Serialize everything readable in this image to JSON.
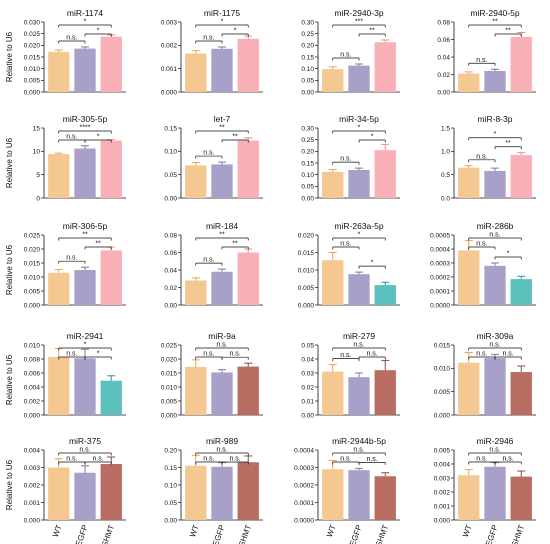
{
  "figure": {
    "ylabel": "Relative to U6",
    "groups": [
      "WT",
      "dsEGFP",
      "dsSHMT"
    ],
    "colors": {
      "WT": "#F5C891",
      "dsEGFP": "#A8A0C8",
      "dsSHMT_up": "#F9AFB6",
      "dsSHMT_down_teal": "#5CC1BD",
      "dsSHMT_mixed": "#B86C62",
      "error_WT": "#E6A457",
      "error_dsEGFP": "#7E73A8",
      "error_up": "#E98992",
      "error_teal": "#31948F",
      "error_mixed": "#8C4A42"
    }
  },
  "chart_data": [
    {
      "type": "bar",
      "title": "miR-1174",
      "categories": [
        "WT",
        "dsEGFP",
        "dsSHMT"
      ],
      "values": [
        0.0172,
        0.0186,
        0.0237
      ],
      "errors": [
        0.0008,
        0.0007,
        0.0008
      ],
      "ylim": [
        0,
        0.03
      ],
      "yticks": [
        "0.000",
        "0.005",
        "0.010",
        "0.015",
        "0.020",
        "0.025",
        "0.030"
      ],
      "tick_values": [
        0,
        0.005,
        0.01,
        0.015,
        0.02,
        0.025,
        0.03
      ],
      "sig": [
        {
          "a": 0,
          "b": 1,
          "label": "n.s."
        },
        {
          "a": 1,
          "b": 2,
          "label": "*"
        },
        {
          "a": 0,
          "b": 2,
          "label": "*"
        }
      ],
      "color3": "dsSHMT_up"
    },
    {
      "type": "bar",
      "title": "miR-1175",
      "categories": [
        "WT",
        "dsEGFP",
        "dsSHMT"
      ],
      "values": [
        0.00165,
        0.00185,
        0.00228
      ],
      "errors": [
        0.00012,
        8e-05,
        0.00012
      ],
      "ylim": [
        0,
        0.003
      ],
      "yticks": [
        "0.000",
        "0.001",
        "0.002",
        "0.003"
      ],
      "tick_values": [
        0,
        0.001,
        0.002,
        0.003
      ],
      "sig": [
        {
          "a": 0,
          "b": 1,
          "label": "n.s."
        },
        {
          "a": 1,
          "b": 2,
          "label": "*"
        },
        {
          "a": 0,
          "b": 2,
          "label": "*"
        }
      ],
      "color3": "dsSHMT_up"
    },
    {
      "type": "bar",
      "title": "miR-2940-3p",
      "categories": [
        "WT",
        "dsEGFP",
        "dsSHMT"
      ],
      "values": [
        0.098,
        0.113,
        0.213
      ],
      "errors": [
        0.01,
        0.007,
        0.01
      ],
      "ylim": [
        0,
        0.3
      ],
      "yticks": [
        "0.00",
        "0.05",
        "0.10",
        "0.15",
        "0.20",
        "0.25",
        "0.30"
      ],
      "tick_values": [
        0,
        0.05,
        0.1,
        0.15,
        0.2,
        0.25,
        0.3
      ],
      "sig": [
        {
          "a": 0,
          "b": 1,
          "label": "n.s."
        },
        {
          "a": 1,
          "b": 2,
          "label": "**"
        },
        {
          "a": 0,
          "b": 2,
          "label": "***"
        }
      ],
      "color3": "dsSHMT_up"
    },
    {
      "type": "bar",
      "title": "miR-2940-5p",
      "categories": [
        "WT",
        "dsEGFP",
        "dsSHMT"
      ],
      "values": [
        0.021,
        0.024,
        0.063
      ],
      "errors": [
        0.002,
        0.002,
        0.005
      ],
      "ylim": [
        0,
        0.08
      ],
      "yticks": [
        "0.00",
        "0.02",
        "0.04",
        "0.06",
        "0.08"
      ],
      "tick_values": [
        0,
        0.02,
        0.04,
        0.06,
        0.08
      ],
      "sig": [
        {
          "a": 0,
          "b": 1,
          "label": "n.s."
        },
        {
          "a": 1,
          "b": 2,
          "label": "**"
        },
        {
          "a": 0,
          "b": 2,
          "label": "**"
        }
      ],
      "color3": "dsSHMT_up"
    },
    {
      "type": "bar",
      "title": "miR-305-5p",
      "categories": [
        "WT",
        "dsEGFP",
        "dsSHMT"
      ],
      "values": [
        9.4,
        10.6,
        12.3
      ],
      "errors": [
        0.2,
        0.6,
        0.2
      ],
      "ylim": [
        0,
        15
      ],
      "yticks": [
        "0",
        "5",
        "10",
        "15"
      ],
      "tick_values": [
        0,
        5,
        10,
        15
      ],
      "sig": [
        {
          "a": 0,
          "b": 1,
          "label": "n.s."
        },
        {
          "a": 1,
          "b": 2,
          "label": "*"
        },
        {
          "a": 0,
          "b": 2,
          "label": "****"
        }
      ],
      "color3": "dsSHMT_up"
    },
    {
      "type": "bar",
      "title": "let-7",
      "categories": [
        "WT",
        "dsEGFP",
        "dsSHMT"
      ],
      "values": [
        0.07,
        0.072,
        0.123
      ],
      "errors": [
        0.006,
        0.005,
        0.006
      ],
      "ylim": [
        0,
        0.15
      ],
      "yticks": [
        "0.00",
        "0.05",
        "0.10",
        "0.15"
      ],
      "tick_values": [
        0,
        0.05,
        0.1,
        0.15
      ],
      "sig": [
        {
          "a": 0,
          "b": 1,
          "label": "n.s."
        },
        {
          "a": 1,
          "b": 2,
          "label": "**"
        },
        {
          "a": 0,
          "b": 2,
          "label": "**"
        }
      ],
      "color3": "dsSHMT_up"
    },
    {
      "type": "bar",
      "title": "miR-34-5p",
      "categories": [
        "WT",
        "dsEGFP",
        "dsSHMT"
      ],
      "values": [
        0.112,
        0.12,
        0.205
      ],
      "errors": [
        0.01,
        0.008,
        0.025
      ],
      "ylim": [
        0,
        0.3
      ],
      "yticks": [
        "0.00",
        "0.05",
        "0.10",
        "0.15",
        "0.20",
        "0.25",
        "0.30"
      ],
      "tick_values": [
        0,
        0.05,
        0.1,
        0.15,
        0.2,
        0.25,
        0.3
      ],
      "sig": [
        {
          "a": 0,
          "b": 1,
          "label": "n.s."
        },
        {
          "a": 1,
          "b": 2,
          "label": "*"
        },
        {
          "a": 0,
          "b": 2,
          "label": "*"
        }
      ],
      "color3": "dsSHMT_up"
    },
    {
      "type": "bar",
      "title": "miR-8-3p",
      "categories": [
        "WT",
        "dsEGFP",
        "dsSHMT"
      ],
      "values": [
        0.65,
        0.58,
        0.92
      ],
      "errors": [
        0.04,
        0.06,
        0.05
      ],
      "ylim": [
        0,
        1.5
      ],
      "yticks": [
        "0.0",
        "0.5",
        "1.0",
        "1.5"
      ],
      "tick_values": [
        0,
        0.5,
        1.0,
        1.5
      ],
      "sig": [
        {
          "a": 0,
          "b": 1,
          "label": "n.s."
        },
        {
          "a": 1,
          "b": 2,
          "label": "**"
        },
        {
          "a": 0,
          "b": 2,
          "label": "*"
        }
      ],
      "color3": "dsSHMT_up"
    },
    {
      "type": "bar",
      "title": "miR-306-5p",
      "categories": [
        "WT",
        "dsEGFP",
        "dsSHMT"
      ],
      "values": [
        0.0115,
        0.0125,
        0.0195
      ],
      "errors": [
        0.0012,
        0.001,
        0.0012
      ],
      "ylim": [
        0,
        0.025
      ],
      "yticks": [
        "0.000",
        "0.005",
        "0.010",
        "0.015",
        "0.020",
        "0.025"
      ],
      "tick_values": [
        0,
        0.005,
        0.01,
        0.015,
        0.02,
        0.025
      ],
      "sig": [
        {
          "a": 0,
          "b": 1,
          "label": "n.s."
        },
        {
          "a": 1,
          "b": 2,
          "label": "**"
        },
        {
          "a": 0,
          "b": 2,
          "label": "**"
        }
      ],
      "color3": "dsSHMT_up"
    },
    {
      "type": "bar",
      "title": "miR-184",
      "categories": [
        "WT",
        "dsEGFP",
        "dsSHMT"
      ],
      "values": [
        0.028,
        0.038,
        0.06
      ],
      "errors": [
        0.003,
        0.003,
        0.004
      ],
      "ylim": [
        0,
        0.08
      ],
      "yticks": [
        "0.00",
        "0.02",
        "0.04",
        "0.06",
        "0.08"
      ],
      "tick_values": [
        0,
        0.02,
        0.04,
        0.06,
        0.08
      ],
      "sig": [
        {
          "a": 0,
          "b": 1,
          "label": "n.s."
        },
        {
          "a": 1,
          "b": 2,
          "label": "**"
        },
        {
          "a": 0,
          "b": 2,
          "label": "**"
        }
      ],
      "color3": "dsSHMT_up"
    },
    {
      "type": "bar",
      "title": "miR-263a-5p",
      "categories": [
        "WT",
        "dsEGFP",
        "dsSHMT"
      ],
      "values": [
        0.0128,
        0.0088,
        0.0057
      ],
      "errors": [
        0.0022,
        0.0006,
        0.0008
      ],
      "ylim": [
        0,
        0.02
      ],
      "yticks": [
        "0.000",
        "0.005",
        "0.010",
        "0.015",
        "0.020"
      ],
      "tick_values": [
        0,
        0.005,
        0.01,
        0.015,
        0.02
      ],
      "sig": [
        {
          "a": 0,
          "b": 1,
          "label": "n.s."
        },
        {
          "a": 1,
          "b": 2,
          "label": "*"
        },
        {
          "a": 0,
          "b": 2,
          "label": "*"
        }
      ],
      "color3": "dsSHMT_down_teal"
    },
    {
      "type": "bar",
      "title": "miR-286b",
      "categories": [
        "WT",
        "dsEGFP",
        "dsSHMT"
      ],
      "values": [
        0.00039,
        0.00028,
        0.000185
      ],
      "errors": [
        7e-05,
        2e-05,
        2e-05
      ],
      "ylim": [
        0,
        0.0005
      ],
      "yticks": [
        "0.0000",
        "0.0001",
        "0.0002",
        "0.0003",
        "0.0004",
        "0.0005"
      ],
      "tick_values": [
        0,
        0.0001,
        0.0002,
        0.0003,
        0.0004,
        0.0005
      ],
      "sig": [
        {
          "a": 0,
          "b": 1,
          "label": "n.s."
        },
        {
          "a": 1,
          "b": 2,
          "label": "*"
        },
        {
          "a": 0,
          "b": 2,
          "label": "n.s."
        }
      ],
      "color3": "dsSHMT_down_teal"
    },
    {
      "type": "bar",
      "title": "miR-2941",
      "categories": [
        "WT",
        "dsEGFP",
        "dsSHMT"
      ],
      "values": [
        0.0083,
        0.0081,
        0.0049
      ],
      "errors": [
        0.0012,
        0.0013,
        0.0007
      ],
      "ylim": [
        0,
        0.01
      ],
      "yticks": [
        "0.000",
        "0.002",
        "0.004",
        "0.006",
        "0.008",
        "0.010"
      ],
      "tick_values": [
        0,
        0.002,
        0.004,
        0.006,
        0.008,
        0.01
      ],
      "sig": [
        {
          "a": 0,
          "b": 1,
          "label": "n.s."
        },
        {
          "a": 1,
          "b": 2,
          "label": "*"
        },
        {
          "a": 0,
          "b": 2,
          "label": "*"
        }
      ],
      "color3": "dsSHMT_down_teal"
    },
    {
      "type": "bar",
      "title": "miR-9a",
      "categories": [
        "WT",
        "dsEGFP",
        "dsSHMT"
      ],
      "values": [
        0.0172,
        0.0152,
        0.0173
      ],
      "errors": [
        0.0025,
        0.001,
        0.0012
      ],
      "ylim": [
        0,
        0.025
      ],
      "yticks": [
        "0.000",
        "0.005",
        "0.010",
        "0.015",
        "0.020",
        "0.025"
      ],
      "tick_values": [
        0,
        0.005,
        0.01,
        0.015,
        0.02,
        0.025
      ],
      "sig": [
        {
          "a": 0,
          "b": 1,
          "label": "n.s."
        },
        {
          "a": 1,
          "b": 2,
          "label": "n.s."
        },
        {
          "a": 0,
          "b": 2,
          "label": "n.s."
        }
      ],
      "color3": "dsSHMT_mixed"
    },
    {
      "type": "bar",
      "title": "miR-279",
      "categories": [
        "WT",
        "dsEGFP",
        "dsSHMT"
      ],
      "values": [
        0.031,
        0.027,
        0.032
      ],
      "errors": [
        0.005,
        0.003,
        0.007
      ],
      "ylim": [
        0,
        0.05
      ],
      "yticks": [
        "0.00",
        "0.01",
        "0.02",
        "0.03",
        "0.04",
        "0.05"
      ],
      "tick_values": [
        0,
        0.01,
        0.02,
        0.03,
        0.04,
        0.05
      ],
      "sig": [
        {
          "a": 0,
          "b": 1,
          "label": "n.s."
        },
        {
          "a": 1,
          "b": 2,
          "label": "n.s."
        },
        {
          "a": 0,
          "b": 2,
          "label": "n.s."
        }
      ],
      "color3": "dsSHMT_mixed"
    },
    {
      "type": "bar",
      "title": "miR-309a",
      "categories": [
        "WT",
        "dsEGFP",
        "dsSHMT"
      ],
      "values": [
        0.0112,
        0.0122,
        0.0092
      ],
      "errors": [
        0.0022,
        0.0008,
        0.0013
      ],
      "ylim": [
        0,
        0.015
      ],
      "yticks": [
        "0.000",
        "0.005",
        "0.010",
        "0.015"
      ],
      "tick_values": [
        0,
        0.005,
        0.01,
        0.015
      ],
      "sig": [
        {
          "a": 0,
          "b": 1,
          "label": "n.s."
        },
        {
          "a": 1,
          "b": 2,
          "label": "n.s."
        },
        {
          "a": 0,
          "b": 2,
          "label": "n.s."
        }
      ],
      "color3": "dsSHMT_mixed"
    },
    {
      "type": "bar",
      "title": "miR-375",
      "categories": [
        "WT",
        "dsEGFP",
        "dsSHMT"
      ],
      "values": [
        0.003,
        0.0027,
        0.0032
      ],
      "errors": [
        0.0005,
        0.0004,
        0.0004
      ],
      "ylim": [
        0,
        0.004
      ],
      "yticks": [
        "0.000",
        "0.001",
        "0.002",
        "0.003",
        "0.004"
      ],
      "tick_values": [
        0,
        0.001,
        0.002,
        0.003,
        0.004
      ],
      "sig": [
        {
          "a": 0,
          "b": 1,
          "label": "n.s."
        },
        {
          "a": 1,
          "b": 2,
          "label": "n.s."
        },
        {
          "a": 0,
          "b": 2,
          "label": "n.s."
        }
      ],
      "color3": "dsSHMT_mixed"
    },
    {
      "type": "bar",
      "title": "miR-989",
      "categories": [
        "WT",
        "dsEGFP",
        "dsSHMT"
      ],
      "values": [
        0.155,
        0.152,
        0.165
      ],
      "errors": [
        0.03,
        0.012,
        0.018
      ],
      "ylim": [
        0,
        0.2
      ],
      "yticks": [
        "0.00",
        "0.05",
        "0.10",
        "0.15",
        "0.20"
      ],
      "tick_values": [
        0,
        0.05,
        0.1,
        0.15,
        0.2
      ],
      "sig": [
        {
          "a": 0,
          "b": 1,
          "label": "n.s."
        },
        {
          "a": 1,
          "b": 2,
          "label": "n.s."
        },
        {
          "a": 0,
          "b": 2,
          "label": "n.s."
        }
      ],
      "color3": "dsSHMT_mixed"
    },
    {
      "type": "bar",
      "title": "miR-2944b-5p",
      "categories": [
        "WT",
        "dsEGFP",
        "dsSHMT"
      ],
      "values": [
        0.00029,
        0.000285,
        0.00025
      ],
      "errors": [
        5e-05,
        1e-05,
        2e-05
      ],
      "ylim": [
        0,
        0.0004
      ],
      "yticks": [
        "0.0000",
        "0.0001",
        "0.0002",
        "0.0003",
        "0.0004"
      ],
      "tick_values": [
        0,
        0.0001,
        0.0002,
        0.0003,
        0.0004
      ],
      "sig": [
        {
          "a": 0,
          "b": 1,
          "label": "n.s."
        },
        {
          "a": 1,
          "b": 2,
          "label": "n.s."
        },
        {
          "a": 0,
          "b": 2,
          "label": "n.s."
        }
      ],
      "color3": "dsSHMT_mixed"
    },
    {
      "type": "bar",
      "title": "miR-2946",
      "categories": [
        "WT",
        "dsEGFP",
        "dsSHMT"
      ],
      "values": [
        0.0032,
        0.0038,
        0.0031
      ],
      "errors": [
        0.0004,
        0.0003,
        0.0004
      ],
      "ylim": [
        0,
        0.005
      ],
      "yticks": [
        "0.000",
        "0.001",
        "0.002",
        "0.003",
        "0.004",
        "0.005"
      ],
      "tick_values": [
        0,
        0.001,
        0.002,
        0.003,
        0.004,
        0.005
      ],
      "sig": [
        {
          "a": 0,
          "b": 1,
          "label": "n.s."
        },
        {
          "a": 1,
          "b": 2,
          "label": "n.s."
        },
        {
          "a": 0,
          "b": 2,
          "label": "n.s."
        }
      ],
      "color3": "dsSHMT_mixed"
    }
  ]
}
